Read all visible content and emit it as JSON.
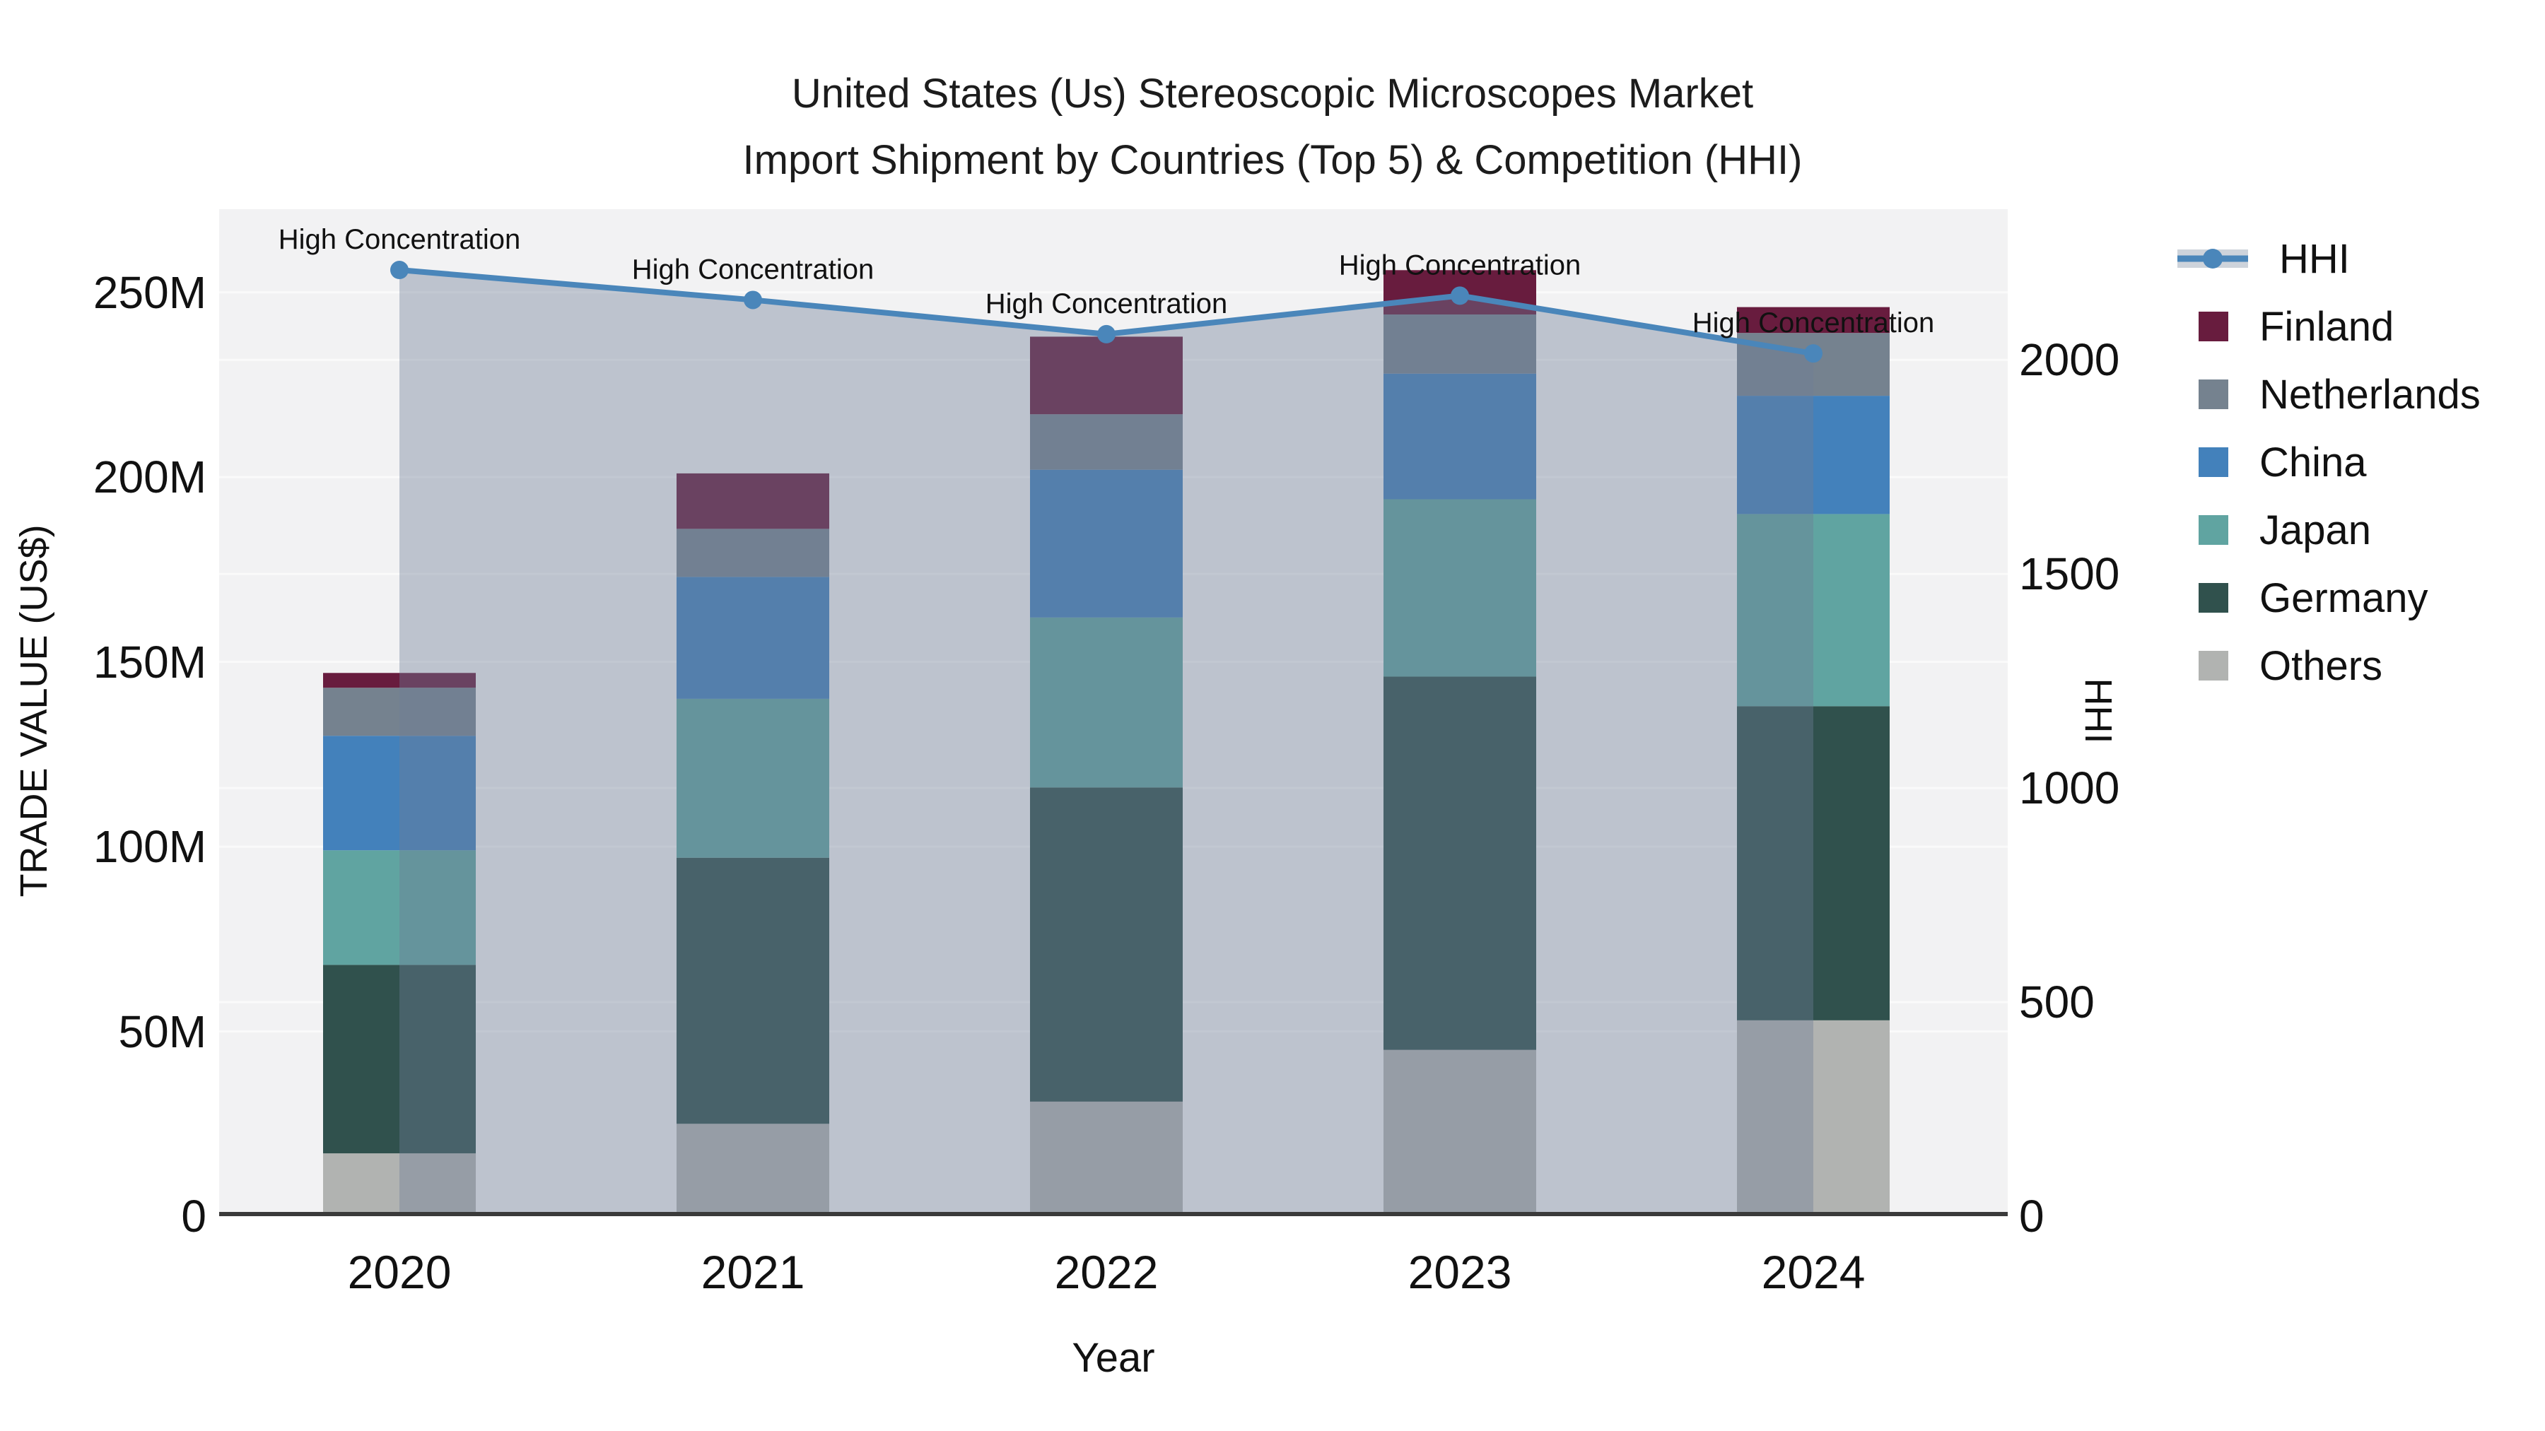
{
  "title": {
    "line1": "United States (Us) Stereoscopic Microscopes Market",
    "line2": "Import Shipment by Countries (Top 5) & Competition (HHI)"
  },
  "axes": {
    "x": {
      "title": "Year",
      "categories": [
        "2020",
        "2021",
        "2022",
        "2023",
        "2024"
      ]
    },
    "y_left": {
      "title": "TRADE VALUE (US$)",
      "ticks": [
        {
          "label": "0",
          "value": 0
        },
        {
          "label": "50M",
          "value": 50
        },
        {
          "label": "100M",
          "value": 100
        },
        {
          "label": "150M",
          "value": 150
        },
        {
          "label": "200M",
          "value": 200
        },
        {
          "label": "250M",
          "value": 250
        }
      ],
      "range": [
        0,
        272.5
      ]
    },
    "y_right": {
      "title": "HHI",
      "ticks": [
        {
          "label": "0",
          "value": 0
        },
        {
          "label": "500",
          "value": 500
        },
        {
          "label": "1000",
          "value": 1000
        },
        {
          "label": "1500",
          "value": 1500
        },
        {
          "label": "2000",
          "value": 2000
        }
      ],
      "range": [
        0,
        2352
      ]
    }
  },
  "legend": [
    {
      "label": "HHI",
      "type": "line",
      "color": "#4a86ba",
      "track_color": "#cdd3db"
    },
    {
      "label": "Finland",
      "type": "swatch",
      "color": "#681c3e"
    },
    {
      "label": "Netherlands",
      "type": "swatch",
      "color": "#75828f"
    },
    {
      "label": "China",
      "type": "swatch",
      "color": "#4381bb"
    },
    {
      "label": "Japan",
      "type": "swatch",
      "color": "#60a4a1"
    },
    {
      "label": "Germany",
      "type": "swatch",
      "color": "#30514d"
    },
    {
      "label": "Others",
      "type": "swatch",
      "color": "#b1b3b1"
    }
  ],
  "chart_data": {
    "type": "combo: stacked bar (left axis) + area line (right axis)",
    "categories": [
      "2020",
      "2021",
      "2022",
      "2023",
      "2024"
    ],
    "bar_value_unit": "M US$",
    "bar_stack_order": "bottom to top",
    "bar_series": [
      {
        "name": "Others",
        "color": "#b1b3b1",
        "values": [
          17,
          25,
          31,
          45,
          53
        ]
      },
      {
        "name": "Germany",
        "color": "#30514d",
        "values": [
          51,
          72,
          85,
          101,
          85
        ]
      },
      {
        "name": "Japan",
        "color": "#60a4a1",
        "values": [
          31,
          43,
          46,
          48,
          52
        ]
      },
      {
        "name": "China",
        "color": "#4381bb",
        "values": [
          31,
          33,
          40,
          34,
          32
        ]
      },
      {
        "name": "Netherlands",
        "color": "#75828f",
        "values": [
          13,
          13,
          15,
          16,
          17
        ]
      },
      {
        "name": "Finland",
        "color": "#681c3e",
        "values": [
          4,
          15,
          21,
          12,
          7
        ]
      }
    ],
    "stack_totals_M": [
      147,
      201,
      238,
      256,
      246
    ],
    "line_series": {
      "name": "HHI",
      "axis": "right",
      "color": "#4a86ba",
      "area_fill": "rgba(110,125,150,0.40)",
      "values": [
        2210,
        2140,
        2060,
        2150,
        2015
      ],
      "marker": "circle"
    },
    "annotations": {
      "text": "High Concentration",
      "applies_to": "every HHI point"
    },
    "gridlines": {
      "left_interval": 50,
      "right_interval": 500,
      "color": "#fafafa"
    },
    "legend_position": "right",
    "colors": {
      "background": "#ffffff",
      "plot_background": "#f2f2f3",
      "axis_line": "#3a3a3a",
      "text": "#111111"
    }
  }
}
